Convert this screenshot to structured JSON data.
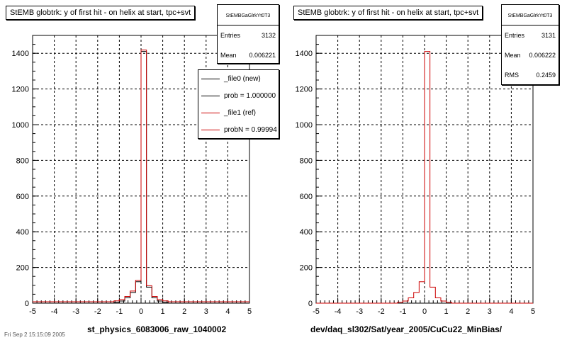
{
  "chart_data": [
    {
      "type": "bar",
      "title": "StEMB globtrk: y of first hit - on helix at start, tpc+svt",
      "xlabel": "st_physics_6083006_raw_1040002",
      "ylabel": "",
      "xlim": [
        -5,
        5
      ],
      "ylim": [
        0,
        1500
      ],
      "x_ticks": [
        "-5",
        "-4",
        "-3",
        "-2",
        "-1",
        "0",
        "1",
        "2",
        "3",
        "4",
        "5"
      ],
      "y_ticks": [
        "0",
        "200",
        "400",
        "600",
        "800",
        "1000",
        "1200",
        "1400"
      ],
      "grid": true,
      "bin_edges": [
        -1.25,
        -1.0,
        -0.75,
        -0.5,
        -0.25,
        0.0,
        0.25,
        0.5,
        0.75,
        1.0,
        1.25
      ],
      "series": [
        {
          "name": "_file0 (new)",
          "color": "#000000",
          "values": [
            5,
            12,
            30,
            60,
            120,
            1410,
            90,
            30,
            12,
            5
          ]
        },
        {
          "name": "_file1 (ref)",
          "color": "#cc0000",
          "values": [
            5,
            12,
            30,
            60,
            120,
            1410,
            90,
            30,
            12,
            5
          ]
        }
      ],
      "stats": {
        "name": "StEMBGaGlrkYt0T3",
        "entries": "3132",
        "mean": "0.006221",
        "entries_label": "Entries",
        "mean_label": "Mean"
      },
      "legend": {
        "position": "top-right",
        "entries": [
          "_file0 (new)",
          "prob = 1.000000",
          "_file1 (ref)",
          "probN = 0.99994"
        ]
      }
    },
    {
      "type": "bar",
      "title": "StEMB globtrk: y of first hit - on helix at start, tpc+svt",
      "xlabel": "dev/daq_sl302/Sat/year_2005/CuCu22_MinBias/",
      "ylabel": "",
      "xlim": [
        -5,
        5
      ],
      "ylim": [
        0,
        1500
      ],
      "x_ticks": [
        "-5",
        "-4",
        "-3",
        "-2",
        "-1",
        "0",
        "1",
        "2",
        "3",
        "4",
        "5"
      ],
      "y_ticks": [
        "0",
        "200",
        "400",
        "600",
        "800",
        "1000",
        "1200",
        "1400"
      ],
      "grid": true,
      "bin_edges": [
        -1.25,
        -1.0,
        -0.75,
        -0.5,
        -0.25,
        0.0,
        0.25,
        0.5,
        0.75,
        1.0,
        1.25
      ],
      "series": [
        {
          "name": "",
          "color": "#cc0000",
          "values": [
            5,
            12,
            30,
            60,
            120,
            1410,
            90,
            30,
            12,
            5
          ]
        }
      ],
      "stats": {
        "name": "StEMBGaGlrkYt0T3",
        "entries": "3131",
        "mean": "0.006222",
        "rms": "0.2459",
        "entries_label": "Entries",
        "mean_label": "Mean",
        "rms_label": "RMS"
      }
    }
  ],
  "footer": "Fri Sep 2 15:15:09 2005"
}
